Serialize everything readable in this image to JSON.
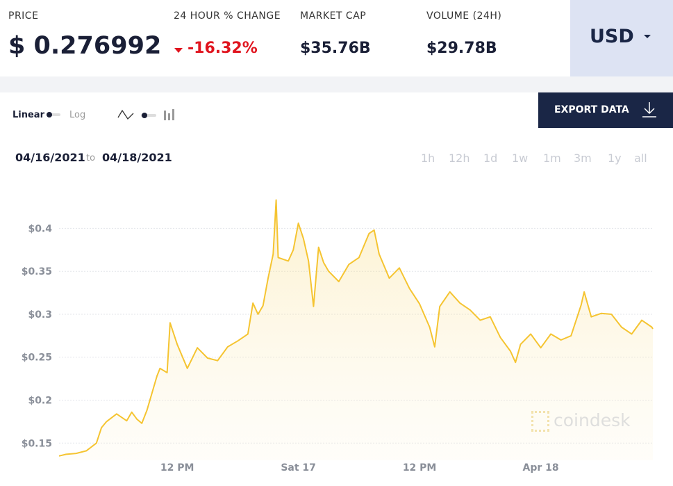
{
  "header": {
    "price_label": "PRICE",
    "price": "$ 0.276992",
    "change_label": "24 HOUR % CHANGE",
    "change": "-16.32%",
    "market_cap_label": "MARKET CAP",
    "market_cap": "$35.76B",
    "volume_label": "VOLUME (24H)",
    "volume": "$29.78B",
    "currency": "USD"
  },
  "controls": {
    "linear": "Linear",
    "log": "Log",
    "export": "EXPORT DATA"
  },
  "range": {
    "from": "04/16/2021",
    "to_word": "to",
    "to": "04/18/2021",
    "buttons": [
      "1h",
      "12h",
      "1d",
      "1w",
      "1m",
      "3m",
      "1y",
      "all"
    ]
  },
  "watermark": "coindesk",
  "chart_data": {
    "type": "line",
    "x": [
      0.3,
      1,
      2,
      3,
      4,
      4.5,
      5,
      6,
      7,
      7.5,
      8,
      8.5,
      9,
      10,
      10.3,
      11,
      11.3,
      12,
      13,
      14,
      15,
      16,
      17,
      18,
      19,
      19.5,
      20,
      20.5,
      21,
      21.5,
      21.8,
      22,
      23,
      23.5,
      24,
      24.5,
      25,
      25.5,
      26,
      26.5,
      27,
      28,
      29,
      30,
      31,
      31.5,
      32,
      33,
      34,
      35,
      36,
      37,
      37.5,
      38,
      39,
      40,
      41,
      42,
      43,
      44,
      45,
      45.5,
      46,
      47,
      48,
      49,
      50,
      51,
      52,
      52.3,
      53,
      54,
      55,
      56,
      57,
      58,
      59,
      59.1
    ],
    "series": [
      {
        "name": "Price",
        "color": "#f5c431",
        "values": [
          0.135,
          0.137,
          0.138,
          0.141,
          0.15,
          0.168,
          0.175,
          0.184,
          0.176,
          0.186,
          0.178,
          0.173,
          0.188,
          0.228,
          0.237,
          0.232,
          0.29,
          0.265,
          0.237,
          0.261,
          0.249,
          0.246,
          0.262,
          0.269,
          0.277,
          0.313,
          0.3,
          0.31,
          0.342,
          0.37,
          0.433,
          0.366,
          0.362,
          0.375,
          0.406,
          0.388,
          0.362,
          0.309,
          0.378,
          0.36,
          0.35,
          0.338,
          0.358,
          0.366,
          0.394,
          0.398,
          0.37,
          0.342,
          0.354,
          0.33,
          0.312,
          0.285,
          0.262,
          0.309,
          0.326,
          0.313,
          0.305,
          0.293,
          0.297,
          0.273,
          0.257,
          0.244,
          0.265,
          0.277,
          0.261,
          0.277,
          0.27,
          0.275,
          0.311,
          0.326,
          0.297,
          0.301,
          0.3,
          0.285,
          0.277,
          0.293,
          0.285,
          0.283
        ]
      }
    ],
    "xlim": [
      0.3,
      59.1
    ],
    "xticks": [
      {
        "value": 12,
        "label": "12 PM"
      },
      {
        "value": 24,
        "label": "Sat 17"
      },
      {
        "value": 36,
        "label": "12 PM"
      },
      {
        "value": 48,
        "label": "Apr 18"
      }
    ],
    "ylim": [
      0.13,
      0.44
    ],
    "yticks": [
      {
        "value": 0.15,
        "label": "$0.15"
      },
      {
        "value": 0.2,
        "label": "$0.2"
      },
      {
        "value": 0.25,
        "label": "$0.25"
      },
      {
        "value": 0.3,
        "label": "$0.3"
      },
      {
        "value": 0.35,
        "label": "$0.35"
      },
      {
        "value": 0.4,
        "label": "$0.4"
      }
    ],
    "grid": true
  }
}
